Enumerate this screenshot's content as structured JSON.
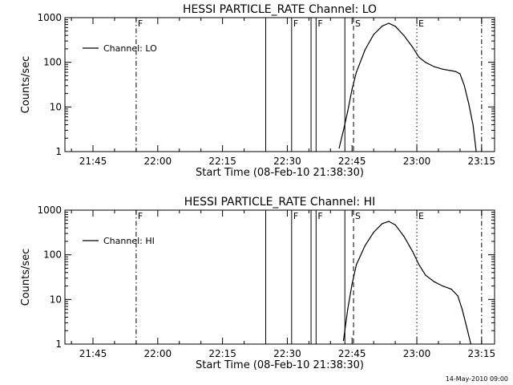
{
  "timestamp": "14-May-2010 09:00",
  "chart_data": [
    {
      "type": "line",
      "title": "HESSI PARTICLE_RATE Channel: LO",
      "xlabel": "Start Time (08-Feb-10 21:38:30)",
      "ylabel": "Counts/sec",
      "yscale": "log",
      "ylim": [
        1,
        1000
      ],
      "xlim": [
        "21:38:30",
        "23:18:00"
      ],
      "x_ticks": [
        "21:45",
        "22:00",
        "22:15",
        "22:30",
        "22:45",
        "23:00",
        "23:15"
      ],
      "y_ticks": [
        "1",
        "10",
        "100",
        "1000"
      ],
      "legend": "top-left",
      "series": [
        {
          "name": "Channel: LO",
          "x": [
            "22:42:00",
            "22:43:00",
            "22:44:00",
            "22:45:00",
            "22:46:00",
            "22:48:00",
            "22:50:00",
            "22:52:00",
            "22:53:30",
            "22:55:00",
            "22:57:00",
            "22:59:00",
            "23:00:30",
            "23:02:00",
            "23:04:00",
            "23:06:00",
            "23:08:00",
            "23:09:00",
            "23:10:00",
            "23:11:00",
            "23:12:00",
            "23:13:00",
            "23:13:45"
          ],
          "values": [
            1.2,
            3,
            8,
            25,
            60,
            190,
            420,
            650,
            750,
            640,
            400,
            220,
            130,
            100,
            80,
            70,
            65,
            62,
            55,
            30,
            12,
            4,
            1
          ]
        }
      ],
      "markers": [
        {
          "time": "21:55:00",
          "label": "F",
          "style": "dash-dot"
        },
        {
          "time": "22:25:00",
          "label": "",
          "style": "solid"
        },
        {
          "time": "22:31:00",
          "label": "F",
          "style": "solid"
        },
        {
          "time": "22:35:30",
          "label": "",
          "style": "solid"
        },
        {
          "time": "22:36:40",
          "label": "F",
          "style": "solid"
        },
        {
          "time": "22:43:20",
          "label": "",
          "style": "solid"
        },
        {
          "time": "22:45:20",
          "label": "S",
          "style": "dashed"
        },
        {
          "time": "23:00:00",
          "label": "E",
          "style": "dotted"
        },
        {
          "time": "23:15:00",
          "label": "",
          "style": "dash-dot"
        }
      ]
    },
    {
      "type": "line",
      "title": "HESSI PARTICLE_RATE Channel: HI",
      "xlabel": "Start Time (08-Feb-10 21:38:30)",
      "ylabel": "Counts/sec",
      "yscale": "log",
      "ylim": [
        1,
        1000
      ],
      "xlim": [
        "21:38:30",
        "23:18:00"
      ],
      "x_ticks": [
        "21:45",
        "22:00",
        "22:15",
        "22:30",
        "22:45",
        "23:00",
        "23:15"
      ],
      "y_ticks": [
        "1",
        "10",
        "100",
        "1000"
      ],
      "legend": "top-left",
      "series": [
        {
          "name": "Channel: HI",
          "x": [
            "22:43:00",
            "22:44:00",
            "22:45:00",
            "22:46:00",
            "22:48:00",
            "22:50:00",
            "22:52:00",
            "22:53:30",
            "22:55:00",
            "22:57:00",
            "22:59:00",
            "23:00:30",
            "23:02:00",
            "23:04:00",
            "23:06:00",
            "23:08:00",
            "23:09:30",
            "23:10:30",
            "23:11:30",
            "23:12:30"
          ],
          "values": [
            1.2,
            6,
            22,
            60,
            160,
            320,
            500,
            560,
            470,
            260,
            120,
            60,
            35,
            25,
            20,
            17,
            12,
            6,
            2.5,
            1
          ]
        }
      ],
      "markers": [
        {
          "time": "21:55:00",
          "label": "F",
          "style": "dash-dot"
        },
        {
          "time": "22:25:00",
          "label": "",
          "style": "solid"
        },
        {
          "time": "22:31:00",
          "label": "F",
          "style": "solid"
        },
        {
          "time": "22:35:30",
          "label": "",
          "style": "solid"
        },
        {
          "time": "22:36:40",
          "label": "F",
          "style": "solid"
        },
        {
          "time": "22:43:20",
          "label": "",
          "style": "solid"
        },
        {
          "time": "22:45:20",
          "label": "S",
          "style": "dashed"
        },
        {
          "time": "23:00:00",
          "label": "E",
          "style": "dotted"
        },
        {
          "time": "23:15:00",
          "label": "",
          "style": "dash-dot"
        }
      ]
    }
  ]
}
